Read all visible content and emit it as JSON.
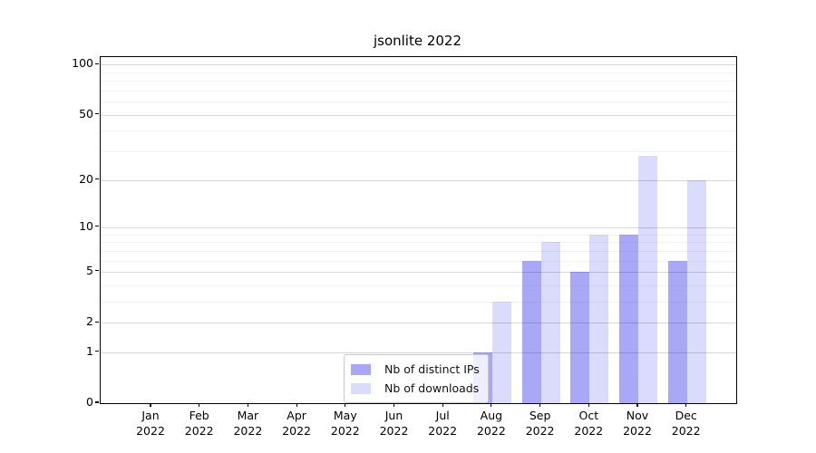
{
  "chart_data": {
    "type": "bar",
    "title": "jsonlite 2022",
    "categories": [
      "Jan",
      "Feb",
      "Mar",
      "Apr",
      "May",
      "Jun",
      "Jul",
      "Aug",
      "Sep",
      "Oct",
      "Nov",
      "Dec"
    ],
    "category_year": "2022",
    "series": [
      {
        "name": "Nb of distinct IPs",
        "color": "rgba(0,0,230,0.34)",
        "values": [
          0,
          0,
          0,
          0,
          0,
          0,
          0,
          1,
          6,
          5,
          9,
          6
        ]
      },
      {
        "name": "Nb of downloads",
        "color": "rgba(0,0,230,0.14)",
        "values": [
          0,
          0,
          0,
          0,
          0,
          0,
          0,
          3,
          8,
          9,
          28,
          20
        ]
      }
    ],
    "yscale": "log1p",
    "y_major_ticks": [
      0,
      1,
      2,
      5,
      10,
      20,
      50,
      100
    ],
    "y_minor_ticks": [
      3,
      4,
      6,
      7,
      8,
      9,
      30,
      40,
      60,
      70,
      80,
      90
    ],
    "ymax": 111,
    "xlabel": "",
    "ylabel": "",
    "grid": "horizontal",
    "legend_position": "lower center"
  }
}
